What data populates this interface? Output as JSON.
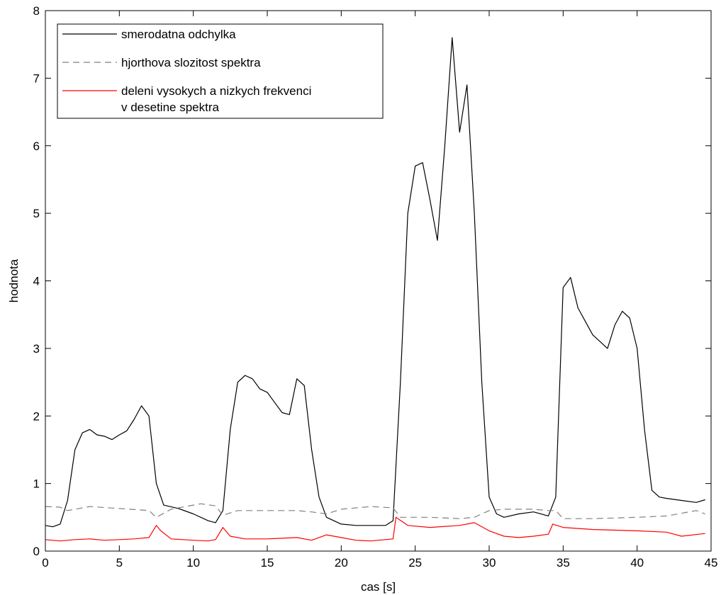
{
  "chart_data": {
    "type": "line",
    "title": "",
    "xlabel": "cas [s]",
    "ylabel": "hodnota",
    "xlim": [
      0,
      45
    ],
    "ylim": [
      0,
      8
    ],
    "xticks": [
      0,
      5,
      10,
      15,
      20,
      25,
      30,
      35,
      40,
      45
    ],
    "yticks": [
      0,
      1,
      2,
      3,
      4,
      5,
      6,
      7,
      8
    ],
    "grid": false,
    "legend_position": "top-left",
    "series": [
      {
        "name": "smerodatna odchylka",
        "color": "#000000",
        "style": "solid",
        "x": [
          0,
          0.5,
          1.0,
          1.5,
          2.0,
          2.5,
          3.0,
          3.5,
          4.0,
          4.5,
          5.0,
          5.5,
          6.0,
          6.5,
          7.0,
          7.5,
          8.0,
          9.0,
          10.0,
          11.0,
          11.5,
          12.0,
          12.5,
          13.0,
          13.5,
          14.0,
          14.5,
          15.0,
          15.5,
          16.0,
          16.5,
          17.0,
          17.5,
          18.0,
          18.5,
          19.0,
          20.0,
          21.0,
          22.0,
          23.0,
          23.5,
          24.0,
          24.5,
          25.0,
          25.5,
          26.0,
          26.5,
          27.0,
          27.5,
          28.0,
          28.5,
          29.0,
          29.5,
          30.0,
          30.5,
          31.0,
          32.0,
          33.0,
          34.0,
          34.5,
          35.0,
          35.5,
          36.0,
          36.5,
          37.0,
          37.5,
          38.0,
          38.5,
          39.0,
          39.5,
          40.0,
          40.5,
          41.0,
          41.5,
          42.0,
          43.0,
          44.0,
          44.6
        ],
        "values": [
          0.38,
          0.36,
          0.4,
          0.75,
          1.5,
          1.75,
          1.8,
          1.72,
          1.7,
          1.65,
          1.72,
          1.78,
          1.95,
          2.15,
          2.0,
          1.0,
          0.68,
          0.63,
          0.55,
          0.45,
          0.42,
          0.6,
          1.8,
          2.5,
          2.6,
          2.55,
          2.4,
          2.35,
          2.2,
          2.05,
          2.02,
          2.55,
          2.45,
          1.5,
          0.8,
          0.5,
          0.4,
          0.38,
          0.38,
          0.38,
          0.45,
          2.5,
          5.0,
          5.7,
          5.75,
          5.2,
          4.6,
          6.0,
          7.6,
          6.2,
          6.9,
          5.0,
          2.5,
          0.8,
          0.55,
          0.5,
          0.55,
          0.58,
          0.52,
          0.8,
          3.9,
          4.05,
          3.6,
          3.4,
          3.2,
          3.1,
          3.0,
          3.35,
          3.55,
          3.45,
          3.0,
          1.8,
          0.9,
          0.8,
          0.78,
          0.75,
          0.72,
          0.76
        ]
      },
      {
        "name": "hjorthova slozitost spektra",
        "color": "#808080",
        "style": "dashed",
        "x": [
          0,
          1.0,
          1.5,
          3.0,
          5.0,
          7.0,
          7.5,
          8.5,
          10.5,
          11.5,
          12.0,
          13.0,
          15.0,
          17.0,
          18.0,
          19.0,
          20.0,
          22.0,
          23.5,
          24.0,
          26.0,
          28.0,
          29.0,
          30.0,
          31.0,
          33.0,
          34.0,
          34.5,
          35.0,
          37.0,
          40.0,
          42.0,
          44.0,
          44.6
        ],
        "values": [
          0.66,
          0.65,
          0.6,
          0.66,
          0.63,
          0.6,
          0.5,
          0.62,
          0.7,
          0.67,
          0.53,
          0.6,
          0.6,
          0.6,
          0.58,
          0.55,
          0.62,
          0.66,
          0.64,
          0.5,
          0.5,
          0.48,
          0.5,
          0.6,
          0.62,
          0.62,
          0.6,
          0.6,
          0.48,
          0.48,
          0.5,
          0.52,
          0.6,
          0.55
        ]
      },
      {
        "name": "deleni vysokych a nizkych frekvenci",
        "name_line2": "v desetine spektra",
        "color": "#ff0000",
        "style": "solid",
        "x": [
          0,
          1.0,
          2.0,
          3.0,
          4.0,
          5.0,
          6.0,
          7.0,
          7.5,
          7.8,
          8.5,
          10.0,
          11.0,
          11.5,
          12.0,
          12.5,
          13.5,
          15.0,
          17.0,
          18.0,
          19.0,
          20.0,
          21.0,
          22.0,
          23.5,
          23.7,
          24.5,
          26.0,
          28.0,
          29.0,
          30.0,
          31.0,
          32.0,
          33.0,
          34.0,
          34.3,
          35.0,
          37.0,
          40.0,
          42.0,
          43.0,
          44.6
        ],
        "values": [
          0.17,
          0.15,
          0.17,
          0.18,
          0.16,
          0.17,
          0.18,
          0.2,
          0.38,
          0.3,
          0.18,
          0.16,
          0.15,
          0.17,
          0.35,
          0.22,
          0.18,
          0.18,
          0.2,
          0.16,
          0.24,
          0.2,
          0.16,
          0.15,
          0.18,
          0.5,
          0.38,
          0.35,
          0.38,
          0.42,
          0.3,
          0.22,
          0.2,
          0.22,
          0.25,
          0.4,
          0.35,
          0.32,
          0.3,
          0.28,
          0.22,
          0.26
        ]
      }
    ]
  }
}
